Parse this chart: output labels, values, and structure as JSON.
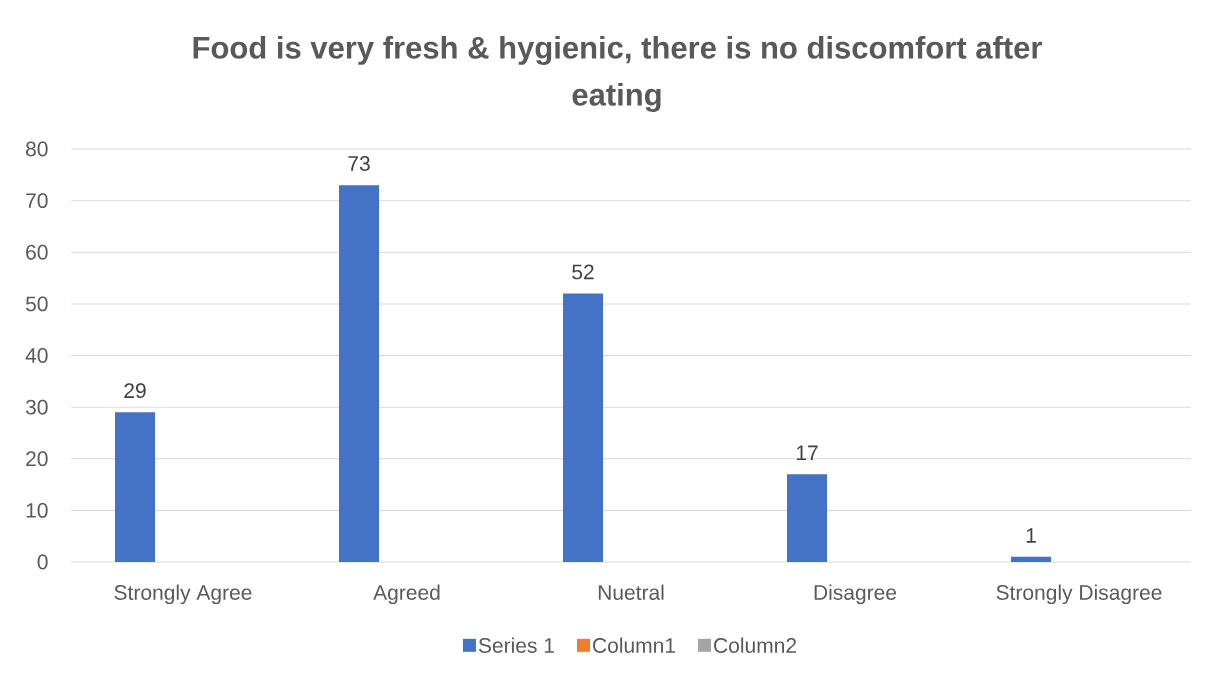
{
  "chart_data": {
    "type": "bar",
    "title": "Food is very fresh & hygienic, there is no discomfort after eating",
    "categories": [
      "Strongly Agree",
      "Agreed",
      "Nuetral",
      "Disagree",
      "Strongly Disagree"
    ],
    "series": [
      {
        "name": "Series 1",
        "color": "#4472c4",
        "values": [
          29,
          73,
          52,
          17,
          1
        ]
      },
      {
        "name": "Column1",
        "color": "#ed7d31",
        "values": [
          null,
          null,
          null,
          null,
          null
        ]
      },
      {
        "name": "Column2",
        "color": "#a5a5a5",
        "values": [
          null,
          null,
          null,
          null,
          null
        ]
      }
    ],
    "ylim": [
      0,
      80
    ],
    "yticks": [
      0,
      10,
      20,
      30,
      40,
      50,
      60,
      70,
      80
    ],
    "grid": "y",
    "legend": "bottom",
    "data_labels": true
  }
}
